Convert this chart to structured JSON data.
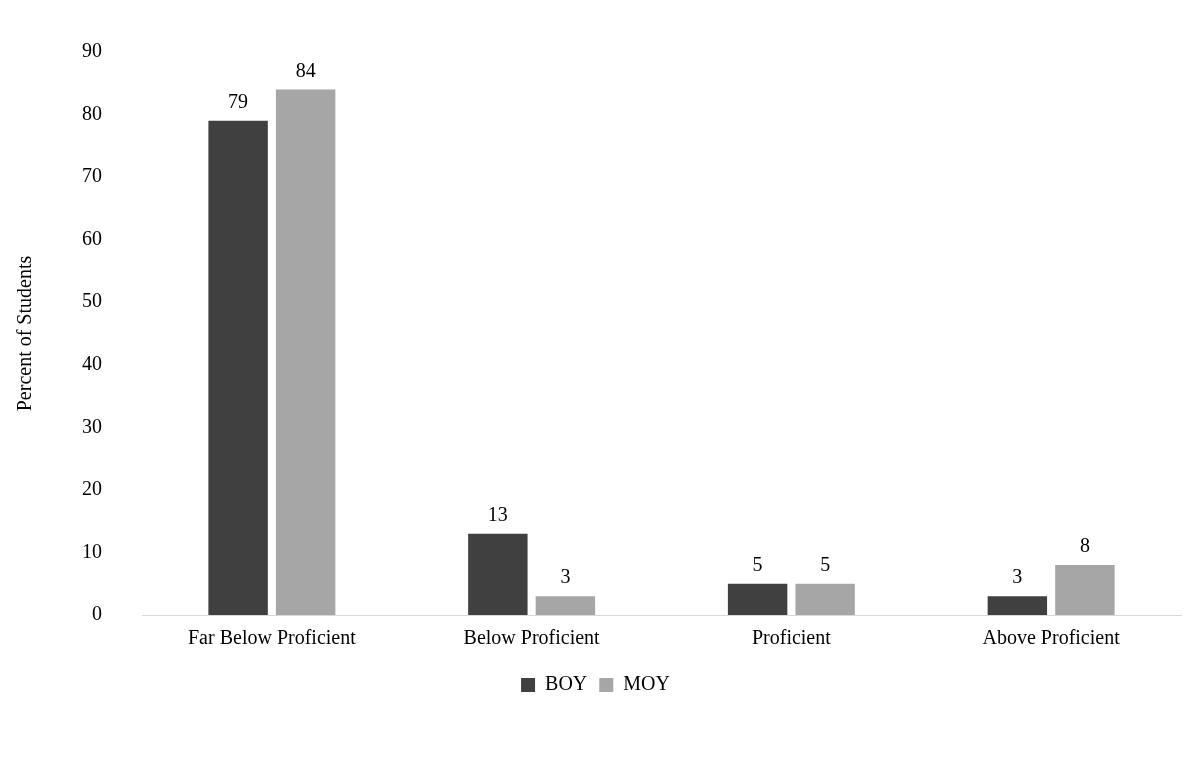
{
  "chart_data": {
    "type": "bar",
    "ylabel": "Percent of Students",
    "categories": [
      "Far Below Proficient",
      "Below Proficient",
      "Proficient",
      "Above Proficient"
    ],
    "series": [
      {
        "name": "BOY",
        "color": "#404040",
        "values": [
          79,
          13,
          5,
          3
        ]
      },
      {
        "name": "MOY",
        "color": "#a6a6a6",
        "values": [
          84,
          3,
          5,
          8
        ]
      }
    ],
    "ylim": [
      0,
      90
    ],
    "yticks": [
      0,
      10,
      20,
      30,
      40,
      50,
      60,
      70,
      80,
      90
    ],
    "grid": false,
    "legend": "bottom",
    "data_labels": true
  }
}
